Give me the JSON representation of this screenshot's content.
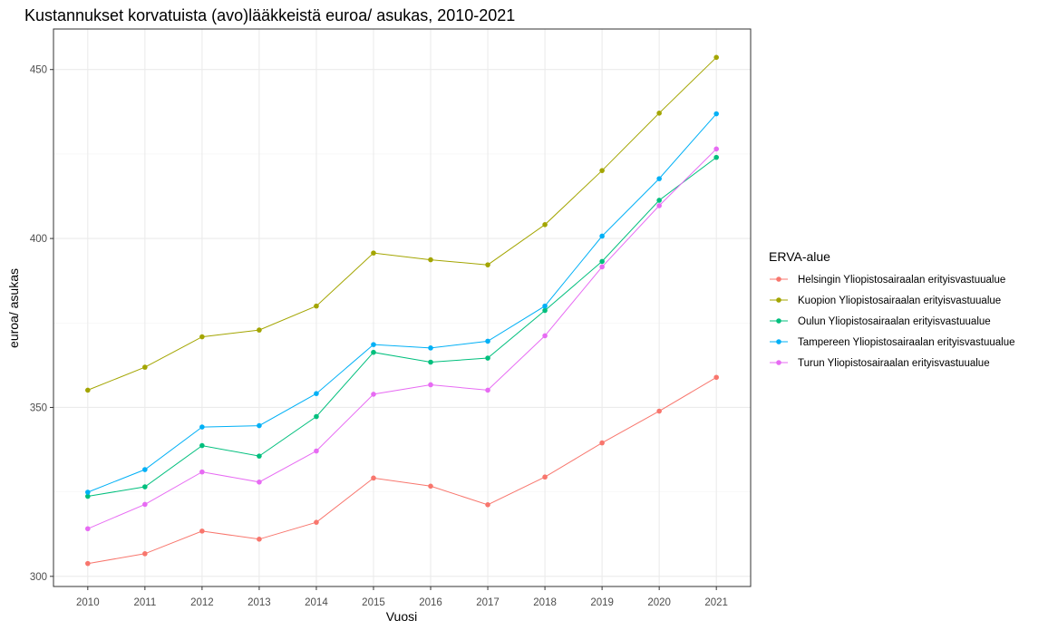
{
  "chart_data": {
    "type": "line",
    "title": "Kustannukset korvatuista (avo)lääkkeistä euroa/ asukas, 2010-2021",
    "xlabel": "Vuosi",
    "ylabel": "euroa/ asukas",
    "categories": [
      "2010",
      "2011",
      "2012",
      "2013",
      "2014",
      "2015",
      "2016",
      "2017",
      "2018",
      "2019",
      "2020",
      "2021"
    ],
    "ylim": [
      297,
      462
    ],
    "yticks": [
      300,
      350,
      400,
      450
    ],
    "ytick_labels": [
      "300",
      "350",
      "400",
      "450"
    ],
    "grid": true,
    "legend": {
      "title": "ERVA-alue",
      "position": "right"
    },
    "series": [
      {
        "name": "Helsingin Yliopistosairaalan erityisvastuualue",
        "color": "#F8766D",
        "values": [
          303.8,
          306.7,
          313.4,
          311.0,
          316.0,
          329.1,
          326.7,
          321.2,
          329.4,
          339.5,
          348.9,
          358.9
        ]
      },
      {
        "name": "Kuopion Yliopistosairaalan erityisvastuualue",
        "color": "#A3A500",
        "values": [
          355.1,
          361.9,
          370.9,
          372.9,
          380.0,
          395.7,
          393.7,
          392.2,
          404.1,
          420.1,
          437.1,
          453.6
        ]
      },
      {
        "name": "Oulun Yliopistosairaalan erityisvastuualue",
        "color": "#00BF7D",
        "values": [
          323.7,
          326.5,
          338.7,
          335.6,
          347.3,
          366.3,
          363.4,
          364.6,
          378.7,
          393.2,
          411.3,
          424.0
        ]
      },
      {
        "name": "Tampereen Yliopistosairaalan erityisvastuualue",
        "color": "#00B0F6",
        "values": [
          324.9,
          331.6,
          344.2,
          344.6,
          354.1,
          368.6,
          367.6,
          369.6,
          380.0,
          400.7,
          417.7,
          436.9
        ]
      },
      {
        "name": "Turun Yliopistosairaalan erityisvastuualue",
        "color": "#E76BF3",
        "values": [
          314.1,
          321.3,
          330.9,
          327.9,
          337.1,
          353.9,
          356.7,
          355.1,
          371.2,
          391.6,
          409.7,
          426.5
        ]
      }
    ]
  }
}
